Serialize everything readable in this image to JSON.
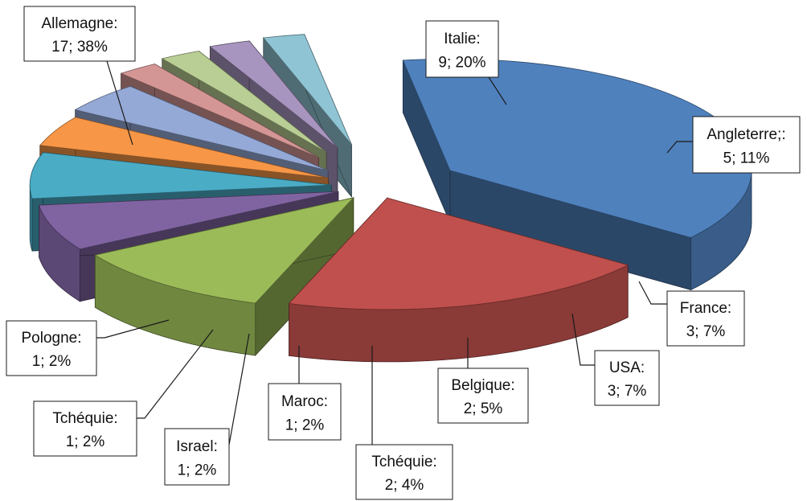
{
  "chart_data": {
    "type": "pie",
    "style": "3d-exploded",
    "slices": [
      {
        "name": "Allemagne",
        "value": 17,
        "percent": "38%",
        "label_line1": "Allemagne:",
        "label_line2": "17;  38%",
        "color": "#4F81BD"
      },
      {
        "name": "Italie",
        "value": 9,
        "percent": "20%",
        "label_line1": "Italie:",
        "label_line2": "9; 20%",
        "color": "#C0504D"
      },
      {
        "name": "Angleterre",
        "value": 5,
        "percent": "11%",
        "label_line1": "Angleterre;:",
        "label_line2": "5; 11%",
        "color": "#9BBB59"
      },
      {
        "name": "France",
        "value": 3,
        "percent": "7%",
        "label_line1": "France:",
        "label_line2": "3; 7%",
        "color": "#8064A2"
      },
      {
        "name": "USA",
        "value": 3,
        "percent": "7%",
        "label_line1": "USA:",
        "label_line2": "3;  7%",
        "color": "#4BACC6"
      },
      {
        "name": "Belgique",
        "value": 2,
        "percent": "5%",
        "label_line1": "Belgique:",
        "label_line2": "2;  5%",
        "color": "#F79646"
      },
      {
        "name": "Tchéquie",
        "value": 2,
        "percent": "4%",
        "label_line1": "Tchéquie:",
        "label_line2": "2; 4%",
        "color": "#95A9D6"
      },
      {
        "name": "Maroc",
        "value": 1,
        "percent": "2%",
        "label_line1": "Maroc:",
        "label_line2": "1;  2%",
        "color": "#D49695"
      },
      {
        "name": "Israel",
        "value": 1,
        "percent": "2%",
        "label_line1": "Israel:",
        "label_line2": "1;  2%",
        "color": "#B9CE94"
      },
      {
        "name": "Tchéquie",
        "value": 1,
        "percent": "2%",
        "label_line1": "Tchéquie:",
        "label_line2": "1; 2%",
        "color": "#A895BF"
      },
      {
        "name": "Pologne",
        "value": 1,
        "percent": "2%",
        "label_line1": "Pologne:",
        "label_line2": "1; 2%",
        "color": "#8FC4D4"
      }
    ]
  }
}
